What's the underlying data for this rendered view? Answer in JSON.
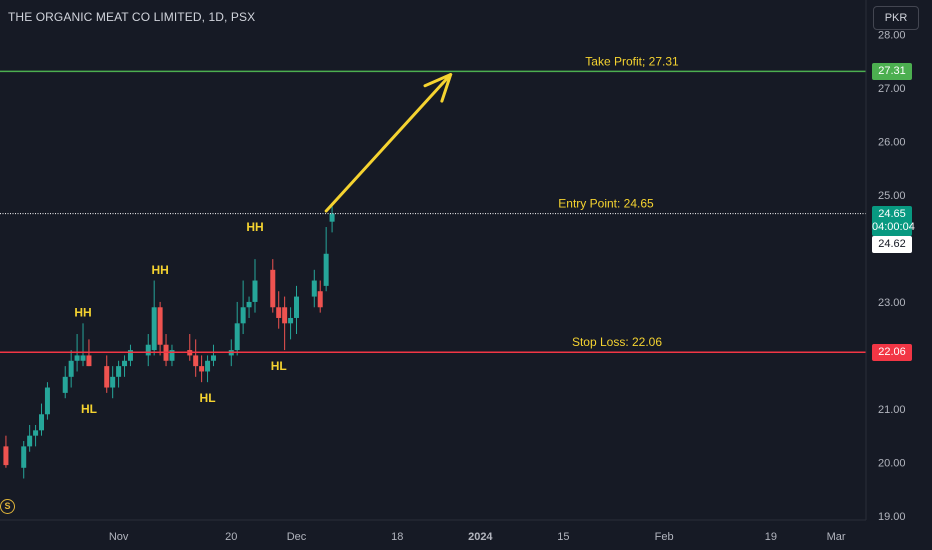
{
  "header": {
    "symbol_title": "THE ORGANIC MEAT CO LIMITED, 1D, PSX",
    "currency": "PKR"
  },
  "badge": {
    "letter": "S"
  },
  "price_labels": {
    "take_profit": "27.31",
    "current": "24.65",
    "countdown": "04:00:04",
    "prev": "24.62",
    "stop_loss": "22.06"
  },
  "annotations": {
    "take_profit": "Take Profit; 27.31",
    "entry": "Entry Point: 24.65",
    "stop_loss": "Stop Loss: 22.06",
    "patterns": [
      {
        "text": "HH",
        "date": "2023-10-26",
        "price": 22.8
      },
      {
        "text": "HL",
        "date": "2023-10-27",
        "price": 21.0
      },
      {
        "text": "HH",
        "date": "2023-11-08",
        "price": 23.6
      },
      {
        "text": "HL",
        "date": "2023-11-16",
        "price": 21.2
      },
      {
        "text": "HH",
        "date": "2023-11-24",
        "price": 24.4
      },
      {
        "text": "HL",
        "date": "2023-11-28",
        "price": 21.8
      }
    ]
  },
  "colors": {
    "background": "#161a25",
    "up": "#26a69a",
    "down": "#ef5350",
    "take_profit_line": "#4caf50",
    "stop_loss_line": "#f23645",
    "entry_line": "#ffffff",
    "annotation": "#f5d330",
    "current_price_bg": "#089981"
  },
  "chart_data": {
    "type": "candlestick",
    "interval": "1D",
    "y_range": [
      18.55,
      28.55
    ],
    "y_ticks": [
      "28.00",
      "27.00",
      "26.00",
      "25.00",
      "23.00",
      "22.00",
      "21.00",
      "20.00",
      "19.00"
    ],
    "x_ticks": [
      {
        "label": "Nov",
        "date": "2023-11-01"
      },
      {
        "label": "20",
        "date": "2023-11-20"
      },
      {
        "label": "Dec",
        "date": "2023-12-01"
      },
      {
        "label": "18",
        "date": "2023-12-18"
      },
      {
        "label": "2024",
        "date": "2024-01-01"
      },
      {
        "label": "15",
        "date": "2024-01-15"
      },
      {
        "label": "Feb",
        "date": "2024-02-01"
      },
      {
        "label": "19",
        "date": "2024-02-19"
      },
      {
        "label": "Mar",
        "date": "2024-03-01"
      }
    ],
    "levels": {
      "take_profit": 27.31,
      "entry": 24.65,
      "stop_loss": 22.06
    },
    "arrow": {
      "from": {
        "date": "2023-12-06",
        "price": 24.7
      },
      "to": {
        "date": "2023-12-27",
        "price": 27.25
      }
    },
    "candles": [
      {
        "date": "2023-10-13",
        "o": 20.3,
        "h": 20.5,
        "l": 19.9,
        "c": 19.95
      },
      {
        "date": "2023-10-16",
        "o": 19.9,
        "h": 20.4,
        "l": 19.7,
        "c": 20.3
      },
      {
        "date": "2023-10-17",
        "o": 20.3,
        "h": 20.7,
        "l": 20.2,
        "c": 20.5
      },
      {
        "date": "2023-10-18",
        "o": 20.5,
        "h": 20.7,
        "l": 20.3,
        "c": 20.6
      },
      {
        "date": "2023-10-19",
        "o": 20.6,
        "h": 21.1,
        "l": 20.5,
        "c": 20.9
      },
      {
        "date": "2023-10-20",
        "o": 20.9,
        "h": 21.5,
        "l": 20.8,
        "c": 21.4
      },
      {
        "date": "2023-10-23",
        "o": 21.3,
        "h": 21.8,
        "l": 21.2,
        "c": 21.6
      },
      {
        "date": "2023-10-24",
        "o": 21.6,
        "h": 22.1,
        "l": 21.4,
        "c": 21.9
      },
      {
        "date": "2023-10-25",
        "o": 21.9,
        "h": 22.4,
        "l": 21.7,
        "c": 22.0
      },
      {
        "date": "2023-10-26",
        "o": 21.9,
        "h": 22.6,
        "l": 21.8,
        "c": 22.0
      },
      {
        "date": "2023-10-27",
        "o": 22.0,
        "h": 22.3,
        "l": 21.8,
        "c": 21.8
      },
      {
        "date": "2023-10-30",
        "o": 21.8,
        "h": 22.0,
        "l": 21.3,
        "c": 21.4
      },
      {
        "date": "2023-10-31",
        "o": 21.4,
        "h": 21.8,
        "l": 21.2,
        "c": 21.6
      },
      {
        "date": "2023-11-01",
        "o": 21.6,
        "h": 21.9,
        "l": 21.4,
        "c": 21.8
      },
      {
        "date": "2023-11-02",
        "o": 21.8,
        "h": 22.0,
        "l": 21.6,
        "c": 21.9
      },
      {
        "date": "2023-11-03",
        "o": 21.9,
        "h": 22.2,
        "l": 21.8,
        "c": 22.1
      },
      {
        "date": "2023-11-06",
        "o": 22.0,
        "h": 22.4,
        "l": 21.8,
        "c": 22.2
      },
      {
        "date": "2023-11-07",
        "o": 22.1,
        "h": 23.4,
        "l": 22.0,
        "c": 22.9
      },
      {
        "date": "2023-11-08",
        "o": 22.9,
        "h": 23.0,
        "l": 22.0,
        "c": 22.2
      },
      {
        "date": "2023-11-09",
        "o": 22.2,
        "h": 22.4,
        "l": 21.8,
        "c": 21.9
      },
      {
        "date": "2023-11-10",
        "o": 21.9,
        "h": 22.2,
        "l": 21.8,
        "c": 22.1
      },
      {
        "date": "2023-11-13",
        "o": 22.1,
        "h": 22.4,
        "l": 21.9,
        "c": 22.0
      },
      {
        "date": "2023-11-14",
        "o": 22.0,
        "h": 22.3,
        "l": 21.6,
        "c": 21.8
      },
      {
        "date": "2023-11-15",
        "o": 21.8,
        "h": 22.0,
        "l": 21.5,
        "c": 21.7
      },
      {
        "date": "2023-11-16",
        "o": 21.7,
        "h": 22.0,
        "l": 21.5,
        "c": 21.9
      },
      {
        "date": "2023-11-17",
        "o": 21.9,
        "h": 22.2,
        "l": 21.8,
        "c": 22.0
      },
      {
        "date": "2023-11-20",
        "o": 22.0,
        "h": 22.3,
        "l": 21.8,
        "c": 22.1
      },
      {
        "date": "2023-11-21",
        "o": 22.1,
        "h": 23.0,
        "l": 22.0,
        "c": 22.6
      },
      {
        "date": "2023-11-22",
        "o": 22.6,
        "h": 23.4,
        "l": 22.4,
        "c": 22.9
      },
      {
        "date": "2023-11-23",
        "o": 22.9,
        "h": 23.1,
        "l": 22.7,
        "c": 23.0
      },
      {
        "date": "2023-11-24",
        "o": 23.0,
        "h": 23.8,
        "l": 22.8,
        "c": 23.4
      },
      {
        "date": "2023-11-27",
        "o": 23.6,
        "h": 23.8,
        "l": 22.8,
        "c": 22.9
      },
      {
        "date": "2023-11-28",
        "o": 22.9,
        "h": 23.2,
        "l": 22.5,
        "c": 22.7
      },
      {
        "date": "2023-11-29",
        "o": 22.9,
        "h": 23.1,
        "l": 22.1,
        "c": 22.6
      },
      {
        "date": "2023-11-30",
        "o": 22.6,
        "h": 22.9,
        "l": 22.3,
        "c": 22.7
      },
      {
        "date": "2023-12-01",
        "o": 22.7,
        "h": 23.3,
        "l": 22.4,
        "c": 23.1
      },
      {
        "date": "2023-12-04",
        "o": 23.1,
        "h": 23.6,
        "l": 22.9,
        "c": 23.4
      },
      {
        "date": "2023-12-05",
        "o": 23.2,
        "h": 23.4,
        "l": 22.8,
        "c": 22.9
      },
      {
        "date": "2023-12-06",
        "o": 23.3,
        "h": 24.4,
        "l": 23.2,
        "c": 23.9
      },
      {
        "date": "2023-12-07",
        "o": 24.5,
        "h": 24.85,
        "l": 24.3,
        "c": 24.65
      }
    ]
  }
}
